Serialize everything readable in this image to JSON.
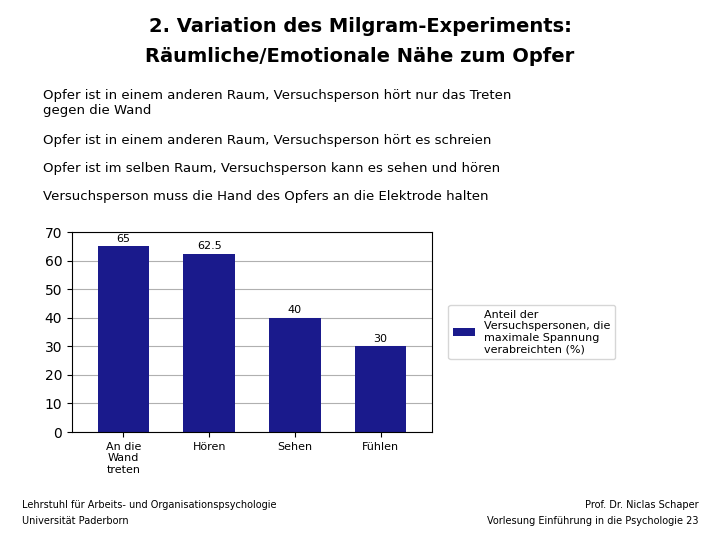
{
  "chart_data": {
    "type": "bar",
    "title": "2. Variation des Milgram-Experiments:",
    "subtitle": "Räumliche/Emotionale Nähe zum Opfer",
    "annotations": [
      "Opfer ist in einem anderen Raum, Versuchsperson hört nur das Treten\ngegen die Wand",
      "Opfer ist in einem anderen Raum, Versuchsperson hört es schreien",
      "Opfer ist im selben Raum, Versuchsperson kann es sehen und hören",
      "Versuchsperson muss die Hand des Opfers an die Elektrode halten",
      "Lehrstuhl für Arbeits- und Organisationspsychologie",
      "Universität Paderborn",
      "Prof. Dr. Niclas Schaper",
      "Vorlesung Einführung in die Psychologie 23"
    ],
    "categories": [
      "An die\nWand\ntreten",
      "Hören",
      "Sehen",
      "Fühlen"
    ],
    "series": [
      {
        "name": "Anteil der\nVersuchspersonen, die\nmaximale Spannung\nverabreichten (%)",
        "color": "#1a1a8c",
        "values": [
          65,
          62.5,
          40,
          30
        ]
      }
    ],
    "ylim": [
      0,
      70
    ],
    "yticks": [
      0,
      10,
      20,
      30,
      40,
      50,
      60,
      70
    ],
    "grid": true,
    "legend": "right",
    "data_labels": true
  }
}
